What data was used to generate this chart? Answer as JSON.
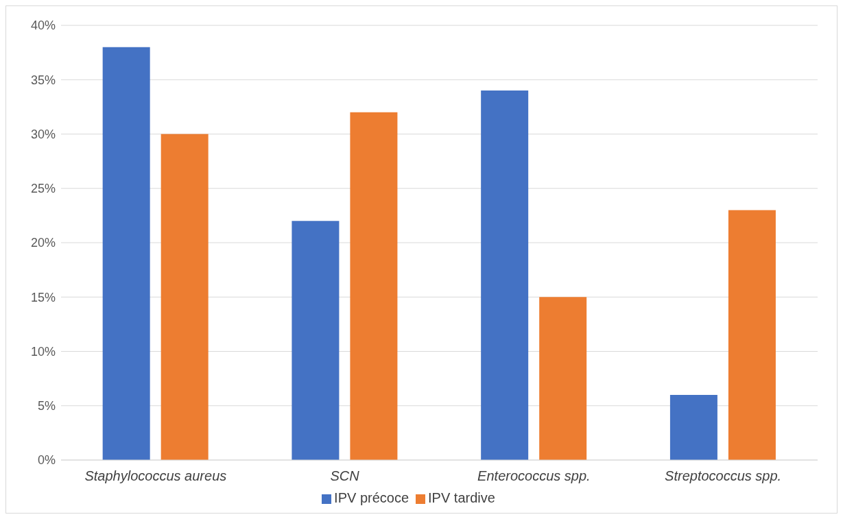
{
  "chart_data": {
    "type": "bar",
    "categories": [
      "Staphylococcus aureus",
      "SCN",
      "Enterococcus spp.",
      "Streptococcus spp."
    ],
    "series": [
      {
        "name": "IPV précoce",
        "color": "#4472c4",
        "values": [
          38,
          22,
          34,
          6
        ]
      },
      {
        "name": "IPV tardive",
        "color": "#ed7d31",
        "values": [
          30,
          32,
          15,
          23
        ]
      }
    ],
    "ylim": [
      0,
      40
    ],
    "yticks": [
      {
        "value": 0,
        "label": "0%"
      },
      {
        "value": 5,
        "label": "5%"
      },
      {
        "value": 10,
        "label": "10%"
      },
      {
        "value": 15,
        "label": "15%"
      },
      {
        "value": 20,
        "label": "20%"
      },
      {
        "value": 25,
        "label": "25%"
      },
      {
        "value": 30,
        "label": "30%"
      },
      {
        "value": 35,
        "label": "35%"
      },
      {
        "value": 40,
        "label": "40%"
      }
    ],
    "grid": "y",
    "legend": "bottom"
  }
}
